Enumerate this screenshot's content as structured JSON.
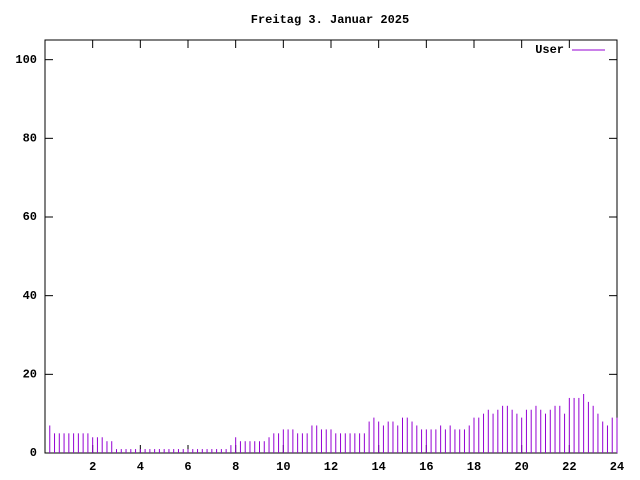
{
  "chart_data": {
    "type": "impulses",
    "title": "Freitag 3. Januar 2025",
    "x": [
      0.2,
      0.4,
      0.6,
      0.8,
      1.0,
      1.2,
      1.4,
      1.6,
      1.8,
      2.0,
      2.2,
      2.4,
      2.6,
      2.8,
      3.0,
      3.2,
      3.4,
      3.6,
      3.8,
      4.0,
      4.2,
      4.4,
      4.6,
      4.8,
      5.0,
      5.2,
      5.4,
      5.6,
      5.8,
      6.0,
      6.2,
      6.4,
      6.6,
      6.8,
      7.0,
      7.2,
      7.4,
      7.6,
      7.8,
      8.0,
      8.2,
      8.4,
      8.6,
      8.8,
      9.0,
      9.2,
      9.4,
      9.6,
      9.8,
      10.0,
      10.2,
      10.4,
      10.6,
      10.8,
      11.0,
      11.2,
      11.4,
      11.6,
      11.8,
      12.0,
      12.2,
      12.4,
      12.6,
      12.8,
      13.0,
      13.2,
      13.4,
      13.6,
      13.8,
      14.0,
      14.2,
      14.4,
      14.6,
      14.8,
      15.0,
      15.2,
      15.4,
      15.6,
      15.8,
      16.0,
      16.2,
      16.4,
      16.6,
      16.8,
      17.0,
      17.2,
      17.4,
      17.6,
      17.8,
      18.0,
      18.2,
      18.4,
      18.6,
      18.8,
      19.0,
      19.2,
      19.4,
      19.6,
      19.8,
      20.0,
      20.2,
      20.4,
      20.6,
      20.8,
      21.0,
      21.2,
      21.4,
      21.6,
      21.8,
      22.0,
      22.2,
      22.4,
      22.6,
      22.8,
      23.0,
      23.2,
      23.4,
      23.6,
      23.8,
      24.0
    ],
    "series": [
      {
        "name": "User",
        "color": "#9400d3",
        "values": [
          7,
          5,
          5,
          5,
          5,
          5,
          5,
          5,
          5,
          4,
          4,
          4,
          3,
          3,
          1,
          1,
          1,
          1,
          1,
          1,
          1,
          1,
          1,
          1,
          1,
          1,
          1,
          1,
          1,
          1,
          1,
          1,
          1,
          1,
          1,
          1,
          1,
          1,
          2,
          4,
          3,
          3,
          3,
          3,
          3,
          3,
          4,
          5,
          5,
          6,
          6,
          6,
          5,
          5,
          5,
          7,
          7,
          6,
          6,
          6,
          5,
          5,
          5,
          5,
          5,
          5,
          5,
          8,
          9,
          8,
          7,
          8,
          8,
          7,
          9,
          9,
          8,
          7,
          6,
          6,
          6,
          6,
          7,
          6,
          7,
          6,
          6,
          6,
          7,
          9,
          9,
          10,
          11,
          10,
          11,
          12,
          12,
          11,
          10,
          9,
          11,
          11,
          12,
          11,
          10,
          11,
          12,
          12,
          10,
          14,
          14,
          14,
          15,
          13,
          12,
          10,
          8,
          7,
          9,
          9
        ]
      }
    ],
    "xlim": [
      0,
      24
    ],
    "xticks": [
      2,
      4,
      6,
      8,
      10,
      12,
      14,
      16,
      18,
      20,
      22,
      24
    ],
    "ylim": [
      0,
      105
    ],
    "yticks": [
      0,
      20,
      40,
      60,
      80,
      100
    ],
    "legend": "top-right"
  }
}
